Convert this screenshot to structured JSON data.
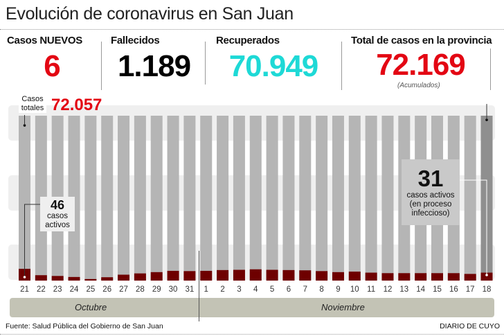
{
  "title": "Evolución de coronavirus en San Juan",
  "stats": [
    {
      "label": "Casos NUEVOS",
      "value": "6",
      "color": "#e30613"
    },
    {
      "label": "Fallecidos",
      "value": "1.189",
      "color": "#000000"
    },
    {
      "label": "Recuperados",
      "value": "70.949",
      "color": "#1ed9d6"
    },
    {
      "label": "Total de casos en la provincia",
      "value": "72.169",
      "color": "#e30613",
      "note": "(Acumulados)"
    }
  ],
  "chart_data": {
    "type": "bar",
    "categories": [
      "21",
      "22",
      "23",
      "24",
      "25",
      "26",
      "27",
      "28",
      "29",
      "30",
      "31",
      "1",
      "2",
      "3",
      "4",
      "5",
      "6",
      "7",
      "8",
      "9",
      "10",
      "11",
      "12",
      "13",
      "14",
      "15",
      "16",
      "17",
      "18"
    ],
    "series": [
      {
        "name": "casos activos",
        "color": "#6e0000",
        "values": [
          46,
          21,
          18,
          14,
          6,
          13,
          23,
          28,
          33,
          38,
          37,
          38,
          41,
          42,
          44,
          42,
          41,
          40,
          37,
          33,
          35,
          31,
          29,
          29,
          29,
          29,
          29,
          26,
          31
        ]
      }
    ],
    "total_bar_color": "#b5b5b5",
    "last_total_bar_color": "#8f8f8f",
    "months": [
      "Octubre",
      "Noviembre"
    ],
    "annotations": {
      "start_total_label": "Casos totales",
      "start_total_value": "72.057",
      "start_active_value": "46",
      "start_active_label": "casos activos",
      "end_active_value": "31",
      "end_active_label": "casos activos (en proceso infeccioso)"
    }
  },
  "footer": {
    "source": "Fuente: Salud Pública del Gobierno de San Juan",
    "brand": "DIARIO DE CUYO"
  }
}
